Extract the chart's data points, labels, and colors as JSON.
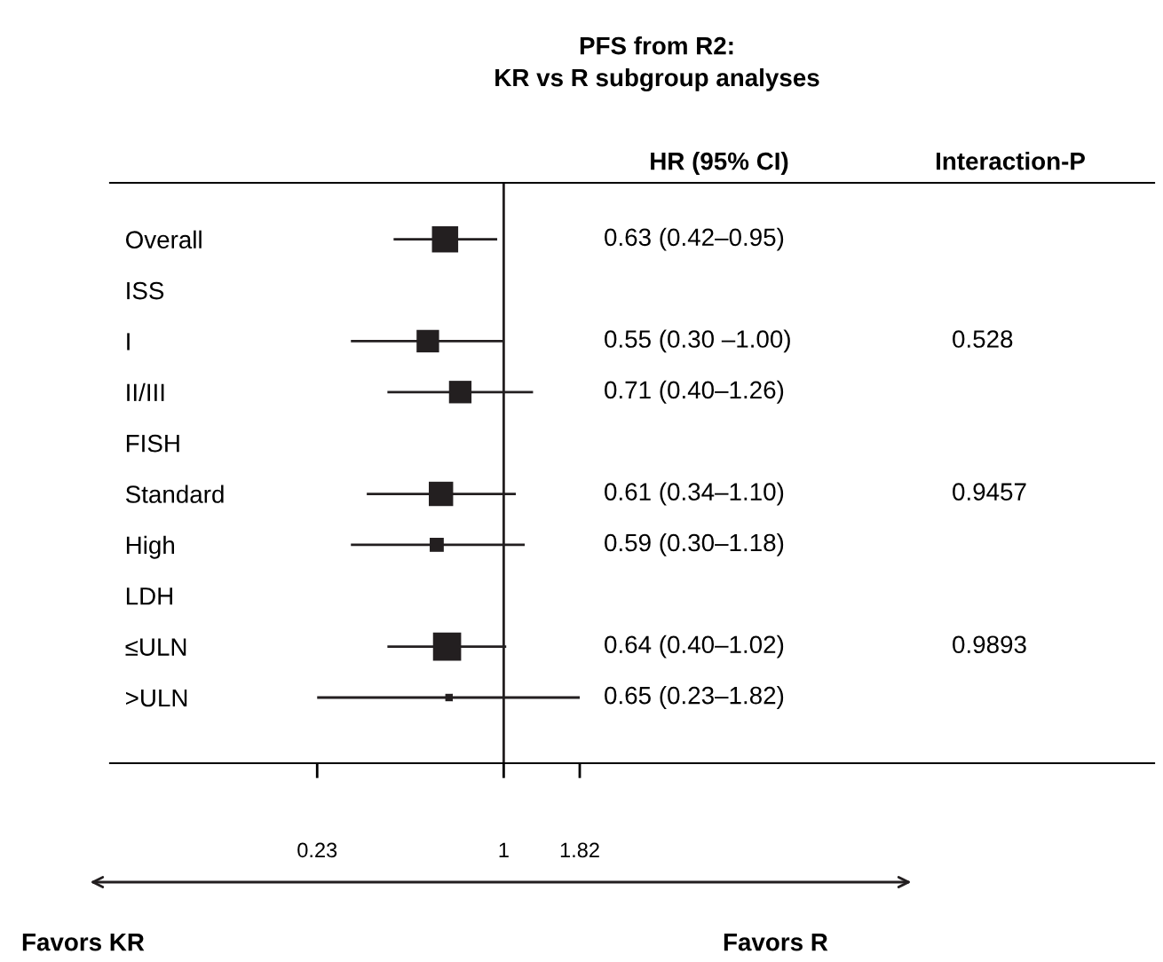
{
  "chart_data": {
    "type": "bubble",
    "orientation": "horizontal",
    "title": "PFS from R2:\nKR vs R subgroup analyses",
    "categories": [
      "Overall",
      "ISS",
      "I",
      "II/III",
      "FISH",
      "Standard",
      "High",
      "LDH",
      "≤ULN",
      ">ULN"
    ],
    "values": [
      0.63,
      null,
      0.55,
      0.71,
      null,
      0.61,
      0.59,
      null,
      0.64,
      0.65
    ],
    "errors": [
      [
        0.42,
        0.95
      ],
      null,
      [
        0.3,
        1.0
      ],
      [
        0.4,
        1.26
      ],
      null,
      [
        0.34,
        1.1
      ],
      [
        0.3,
        1.18
      ],
      null,
      [
        0.4,
        1.02
      ],
      [
        0.23,
        1.82
      ]
    ],
    "sizes": [
      0.87,
      null,
      0.64,
      0.64,
      null,
      0.75,
      0.25,
      null,
      1,
      0.07
    ],
    "color": "#231f20",
    "marker": "square",
    "log": "x",
    "xlim": [
      0.045,
      168
    ],
    "xticks": [
      0.23,
      1,
      1.82
    ],
    "ref_lines": [
      {
        "axis": "x",
        "value": 1,
        "label": null
      }
    ],
    "annotations": [
      "HR (95% CI)",
      "Interaction-P",
      "0.63 (0.42–0.95)",
      "0.55 (0.30 –1.00)",
      "0.71 (0.40–1.26)",
      "0.61 (0.34–1.10)",
      "0.59 (0.30–1.18)",
      "0.64 (0.40–1.02)",
      "0.65 (0.23–1.82)",
      "0.528",
      "0.9457",
      "0.9893",
      "Favors KR",
      "Favors R"
    ],
    "grid": false,
    "legend": false
  }
}
